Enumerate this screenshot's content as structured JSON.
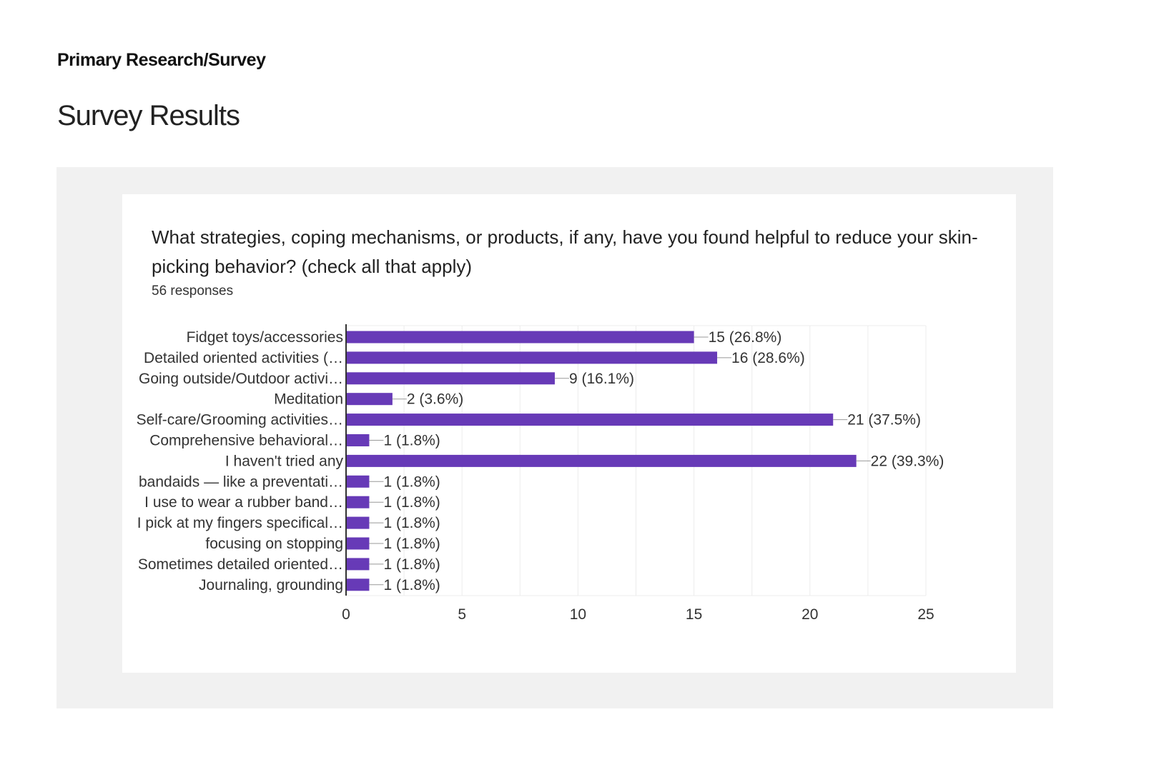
{
  "header": {
    "breadcrumb": "Primary Research/Survey",
    "title": "Survey Results"
  },
  "card": {
    "question": "What strategies, coping mechanisms, or products, if any, have you found helpful to reduce your skin-picking behavior? (check all that apply)",
    "responses": "56 responses"
  },
  "colors": {
    "bar": "#673ab7",
    "grid": "#ececec",
    "axis": "#333333"
  },
  "chart_data": {
    "type": "bar",
    "orientation": "horizontal",
    "title": "What strategies, coping mechanisms, or products, if any, have you found helpful to reduce your skin-picking behavior? (check all that apply)",
    "categories": [
      "Fidget toys/accessories",
      "Detailed oriented activities (…",
      "Going outside/Outdoor activi…",
      "Meditation",
      "Self-care/Grooming activities…",
      "Comprehensive behavioral…",
      "I haven't tried any",
      "bandaids — like a preventati…",
      "I use to wear a rubber band…",
      "I pick at my fingers specifical…",
      "focusing on stopping",
      "Sometimes detailed oriented…",
      "Journaling, grounding"
    ],
    "values": [
      15,
      16,
      9,
      2,
      21,
      1,
      22,
      1,
      1,
      1,
      1,
      1,
      1
    ],
    "data_labels": [
      "15 (26.8%)",
      "16 (28.6%)",
      "9 (16.1%)",
      "2 (3.6%)",
      "21 (37.5%)",
      "1 (1.8%)",
      "22 (39.3%)",
      "1 (1.8%)",
      "1 (1.8%)",
      "1 (1.8%)",
      "1 (1.8%)",
      "1 (1.8%)",
      "1 (1.8%)"
    ],
    "xlim": [
      0,
      25
    ],
    "xticks": [
      0,
      5,
      10,
      15,
      20,
      25
    ],
    "xlabel": "",
    "ylabel": "",
    "grid": true,
    "legend": "none"
  }
}
